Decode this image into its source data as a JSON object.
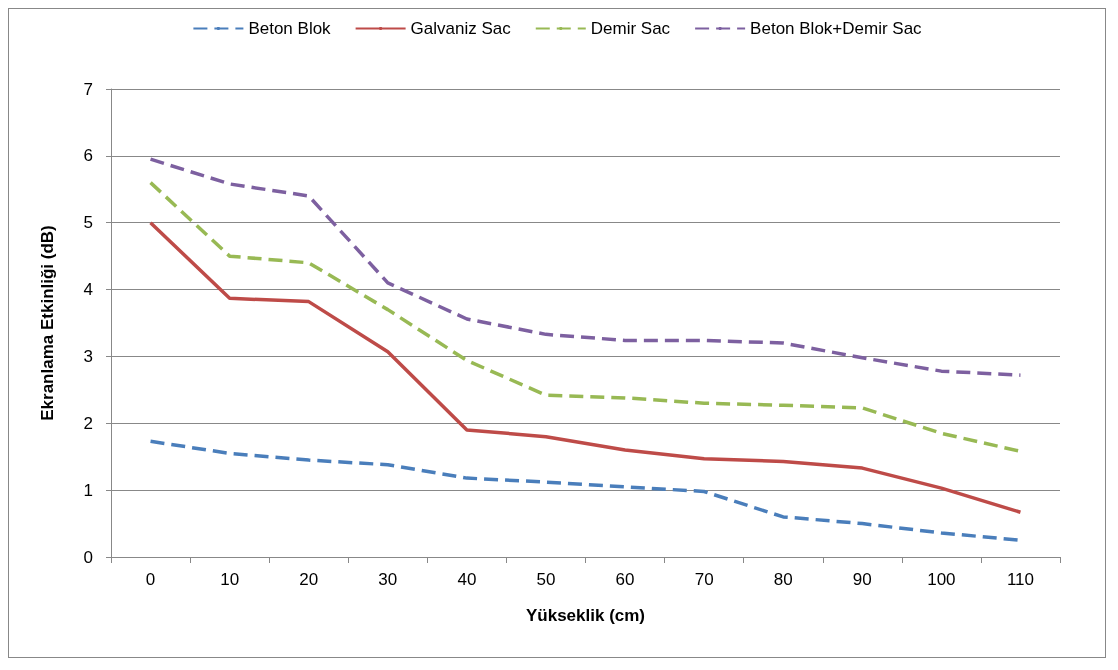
{
  "chart_data": {
    "type": "line",
    "xlabel": "Yükseklik (cm)",
    "ylabel": "Ekranlama Etkinliği (dB)",
    "categories": [
      "0",
      "10",
      "20",
      "30",
      "40",
      "50",
      "60",
      "70",
      "80",
      "90",
      "100",
      "110"
    ],
    "series": [
      {
        "name": "Beton Blok",
        "color": "#4a7ebb",
        "line_style": "dashed",
        "values": [
          1.73,
          1.55,
          1.45,
          1.38,
          1.18,
          1.12,
          1.05,
          0.98,
          0.6,
          0.5,
          0.36,
          0.25
        ]
      },
      {
        "name": "Galvaniz Sac",
        "color": "#be4b48",
        "line_style": "solid",
        "values": [
          5.0,
          3.87,
          3.82,
          3.07,
          1.9,
          1.8,
          1.6,
          1.47,
          1.43,
          1.33,
          1.03,
          0.67
        ]
      },
      {
        "name": "Demir Sac",
        "color": "#98b954",
        "line_style": "dashed",
        "values": [
          5.6,
          4.5,
          4.4,
          3.7,
          2.94,
          2.42,
          2.38,
          2.3,
          2.27,
          2.23,
          1.85,
          1.58
        ]
      },
      {
        "name": "Beton Blok+Demir Sac",
        "color": "#7d60a0",
        "line_style": "dashed",
        "values": [
          5.95,
          5.58,
          5.4,
          4.1,
          3.56,
          3.33,
          3.24,
          3.24,
          3.2,
          2.98,
          2.78,
          2.72
        ]
      }
    ],
    "ylim": [
      0,
      7
    ],
    "yticks": [
      0,
      1,
      2,
      3,
      4,
      5,
      6,
      7
    ],
    "grid": "y",
    "legend": "top",
    "marker": "none"
  }
}
